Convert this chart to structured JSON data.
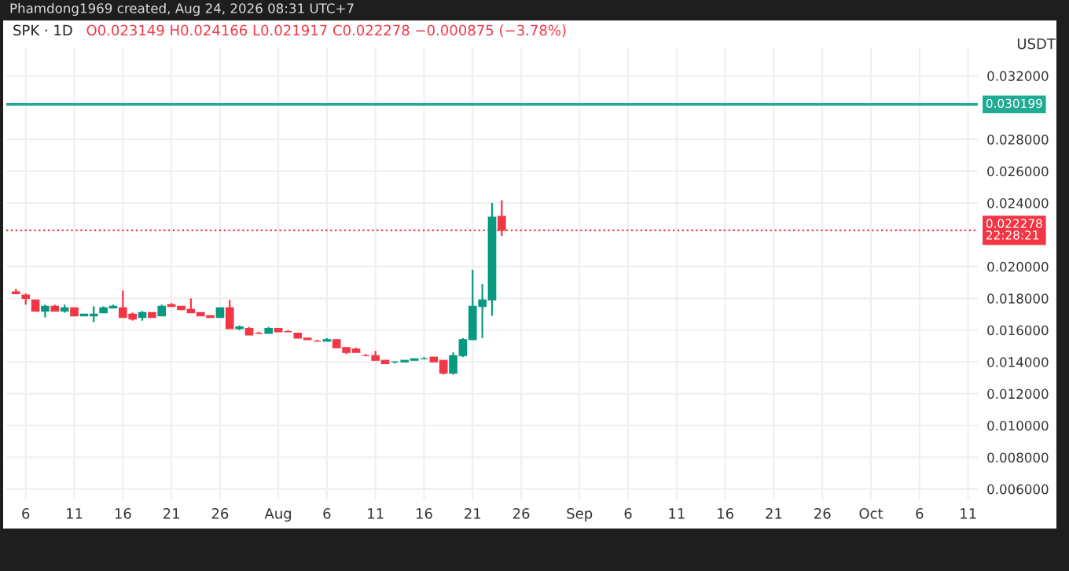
{
  "chart_data": {
    "type": "candlestick",
    "title": "SPK · 1D",
    "subtitle": "O0.023149 H0.024166 L0.021917 C0.022278 −0.000875 (−3.78%)",
    "ylabel": "USDT",
    "annotations": [
      "Phamdong1969 created, Aug 24, 2026 08:31 UTC+7"
    ],
    "x": [
      "2026-07-05",
      "2026-07-06",
      "2026-07-07",
      "2026-07-08",
      "2026-07-09",
      "2026-07-10",
      "2026-07-11",
      "2026-07-12",
      "2026-07-13",
      "2026-07-14",
      "2026-07-15",
      "2026-07-16",
      "2026-07-17",
      "2026-07-18",
      "2026-07-19",
      "2026-07-20",
      "2026-07-21",
      "2026-07-22",
      "2026-07-23",
      "2026-07-24",
      "2026-07-25",
      "2026-07-26",
      "2026-07-27",
      "2026-07-28",
      "2026-07-29",
      "2026-07-30",
      "2026-07-31",
      "2026-08-01",
      "2026-08-02",
      "2026-08-03",
      "2026-08-04",
      "2026-08-05",
      "2026-08-06",
      "2026-08-07",
      "2026-08-08",
      "2026-08-09",
      "2026-08-10",
      "2026-08-11",
      "2026-08-12",
      "2026-08-13",
      "2026-08-14",
      "2026-08-15",
      "2026-08-16",
      "2026-08-17",
      "2026-08-18",
      "2026-08-19",
      "2026-08-20",
      "2026-08-21",
      "2026-08-22",
      "2026-08-23",
      "2026-08-24"
    ],
    "ohlc": [
      [
        0.0184,
        0.0186,
        0.0183,
        0.0183
      ],
      [
        0.0182,
        0.0183,
        0.0176,
        0.018
      ],
      [
        0.0179,
        0.0179,
        0.0172,
        0.0172
      ],
      [
        0.0172,
        0.0176,
        0.0168,
        0.0175
      ],
      [
        0.0175,
        0.0176,
        0.0172,
        0.0172
      ],
      [
        0.0172,
        0.0176,
        0.0171,
        0.0174
      ],
      [
        0.0174,
        0.0174,
        0.0169,
        0.0169
      ],
      [
        0.0169,
        0.017,
        0.0169,
        0.017
      ],
      [
        0.0169,
        0.0175,
        0.0165,
        0.017
      ],
      [
        0.0171,
        0.0175,
        0.0171,
        0.0174
      ],
      [
        0.0174,
        0.0176,
        0.0174,
        0.0175
      ],
      [
        0.0174,
        0.0185,
        0.0168,
        0.0168
      ],
      [
        0.017,
        0.0171,
        0.0166,
        0.0167
      ],
      [
        0.0168,
        0.0172,
        0.0166,
        0.0171
      ],
      [
        0.0171,
        0.0171,
        0.0168,
        0.0168
      ],
      [
        0.0169,
        0.0176,
        0.0169,
        0.0175
      ],
      [
        0.0176,
        0.0177,
        0.0175,
        0.0175
      ],
      [
        0.0175,
        0.0175,
        0.0173,
        0.0173
      ],
      [
        0.0173,
        0.018,
        0.0171,
        0.0171
      ],
      [
        0.0171,
        0.0171,
        0.0169,
        0.0169
      ],
      [
        0.0169,
        0.0169,
        0.0168,
        0.0168
      ],
      [
        0.0168,
        0.0174,
        0.0168,
        0.0174
      ],
      [
        0.0174,
        0.0179,
        0.0161,
        0.0161
      ],
      [
        0.0161,
        0.0163,
        0.016,
        0.0162
      ],
      [
        0.0161,
        0.0162,
        0.0157,
        0.0157
      ],
      [
        0.0158,
        0.0159,
        0.0158,
        0.0158
      ],
      [
        0.0158,
        0.0162,
        0.0158,
        0.0161
      ],
      [
        0.0161,
        0.0161,
        0.0159,
        0.0159
      ],
      [
        0.0159,
        0.016,
        0.0159,
        0.0159
      ],
      [
        0.0158,
        0.0158,
        0.0155,
        0.0155
      ],
      [
        0.0155,
        0.0155,
        0.0154,
        0.0154
      ],
      [
        0.0153,
        0.0154,
        0.0153,
        0.0153
      ],
      [
        0.0153,
        0.0155,
        0.0153,
        0.0154
      ],
      [
        0.0154,
        0.0154,
        0.0149,
        0.0149
      ],
      [
        0.0149,
        0.0149,
        0.0145,
        0.0146
      ],
      [
        0.0148,
        0.0149,
        0.0146,
        0.0146
      ],
      [
        0.0144,
        0.0145,
        0.0144,
        0.0144
      ],
      [
        0.0144,
        0.0147,
        0.0141,
        0.0141
      ],
      [
        0.0141,
        0.0141,
        0.0139,
        0.0139
      ],
      [
        0.014,
        0.014,
        0.0139,
        0.014
      ],
      [
        0.014,
        0.0141,
        0.014,
        0.0141
      ],
      [
        0.0141,
        0.0142,
        0.0141,
        0.0142
      ],
      [
        0.0142,
        0.0143,
        0.0142,
        0.0142
      ],
      [
        0.0143,
        0.0143,
        0.014,
        0.014
      ],
      [
        0.0141,
        0.0141,
        0.0132,
        0.0133
      ],
      [
        0.0133,
        0.0146,
        0.0132,
        0.0144
      ],
      [
        0.0144,
        0.0155,
        0.0143,
        0.0154
      ],
      [
        0.0154,
        0.0198,
        0.0154,
        0.0175
      ],
      [
        0.0175,
        0.0189,
        0.0155,
        0.0179
      ],
      [
        0.0179,
        0.024,
        0.0169,
        0.0231
      ],
      [
        0.023149,
        0.024166,
        0.021917,
        0.022278
      ]
    ],
    "colors": [
      "#f23645",
      "#f23645",
      "#f23645",
      "#089981",
      "#f23645",
      "#089981",
      "#f23645",
      "#089981",
      "#089981",
      "#089981",
      "#089981",
      "#f23645",
      "#f23645",
      "#089981",
      "#f23645",
      "#089981",
      "#f23645",
      "#f23645",
      "#f23645",
      "#f23645",
      "#f23645",
      "#089981",
      "#f23645",
      "#089981",
      "#f23645",
      "#f23645",
      "#089981",
      "#f23645",
      "#f23645",
      "#f23645",
      "#f23645",
      "#f23645",
      "#089981",
      "#f23645",
      "#f23645",
      "#f23645",
      "#f23645",
      "#f23645",
      "#f23645",
      "#089981",
      "#089981",
      "#089981",
      "#089981",
      "#f23645",
      "#f23645",
      "#089981",
      "#089981",
      "#089981",
      "#089981",
      "#089981",
      "#f23645"
    ],
    "xlim": [
      "2026-07-04",
      "2026-10-12"
    ],
    "xticks": [
      {
        "value": "2026-07-06",
        "label": "6"
      },
      {
        "value": "2026-07-11",
        "label": "11"
      },
      {
        "value": "2026-07-16",
        "label": "16"
      },
      {
        "value": "2026-07-21",
        "label": "21"
      },
      {
        "value": "2026-07-26",
        "label": "26"
      },
      {
        "value": "2026-08-01",
        "label": "Aug"
      },
      {
        "value": "2026-08-06",
        "label": "6"
      },
      {
        "value": "2026-08-11",
        "label": "11"
      },
      {
        "value": "2026-08-16",
        "label": "16"
      },
      {
        "value": "2026-08-21",
        "label": "21"
      },
      {
        "value": "2026-08-26",
        "label": "26"
      },
      {
        "value": "2026-09-01",
        "label": "Sep"
      },
      {
        "value": "2026-09-06",
        "label": "6"
      },
      {
        "value": "2026-09-11",
        "label": "11"
      },
      {
        "value": "2026-09-16",
        "label": "16"
      },
      {
        "value": "2026-09-21",
        "label": "21"
      },
      {
        "value": "2026-09-26",
        "label": "26"
      },
      {
        "value": "2026-10-01",
        "label": "Oct"
      },
      {
        "value": "2026-10-06",
        "label": "6"
      },
      {
        "value": "2026-10-11",
        "label": "11"
      }
    ],
    "ylim": [
      0.0053,
      0.0338
    ],
    "yticks": [
      {
        "value": 0.006,
        "label": "0.006000"
      },
      {
        "value": 0.008,
        "label": "0.008000"
      },
      {
        "value": 0.01,
        "label": "0.010000"
      },
      {
        "value": 0.012,
        "label": "0.012000"
      },
      {
        "value": 0.014,
        "label": "0.014000"
      },
      {
        "value": 0.016,
        "label": "0.016000"
      },
      {
        "value": 0.018,
        "label": "0.018000"
      },
      {
        "value": 0.02,
        "label": "0.020000"
      },
      {
        "value": 0.024,
        "label": "0.024000"
      },
      {
        "value": 0.026,
        "label": "0.026000"
      },
      {
        "value": 0.028,
        "label": "0.028000"
      },
      {
        "value": 0.032,
        "label": "0.032000"
      }
    ],
    "ref_lines": [
      {
        "axis": "y",
        "value": 0.030199,
        "label": "0.030199",
        "color": "#22ab94",
        "line_style": "solid"
      },
      {
        "axis": "y",
        "value": 0.022278,
        "label": "0.022278\n22:28:21",
        "color": "#f23645",
        "line_style": "dotted"
      }
    ],
    "grid": true
  }
}
